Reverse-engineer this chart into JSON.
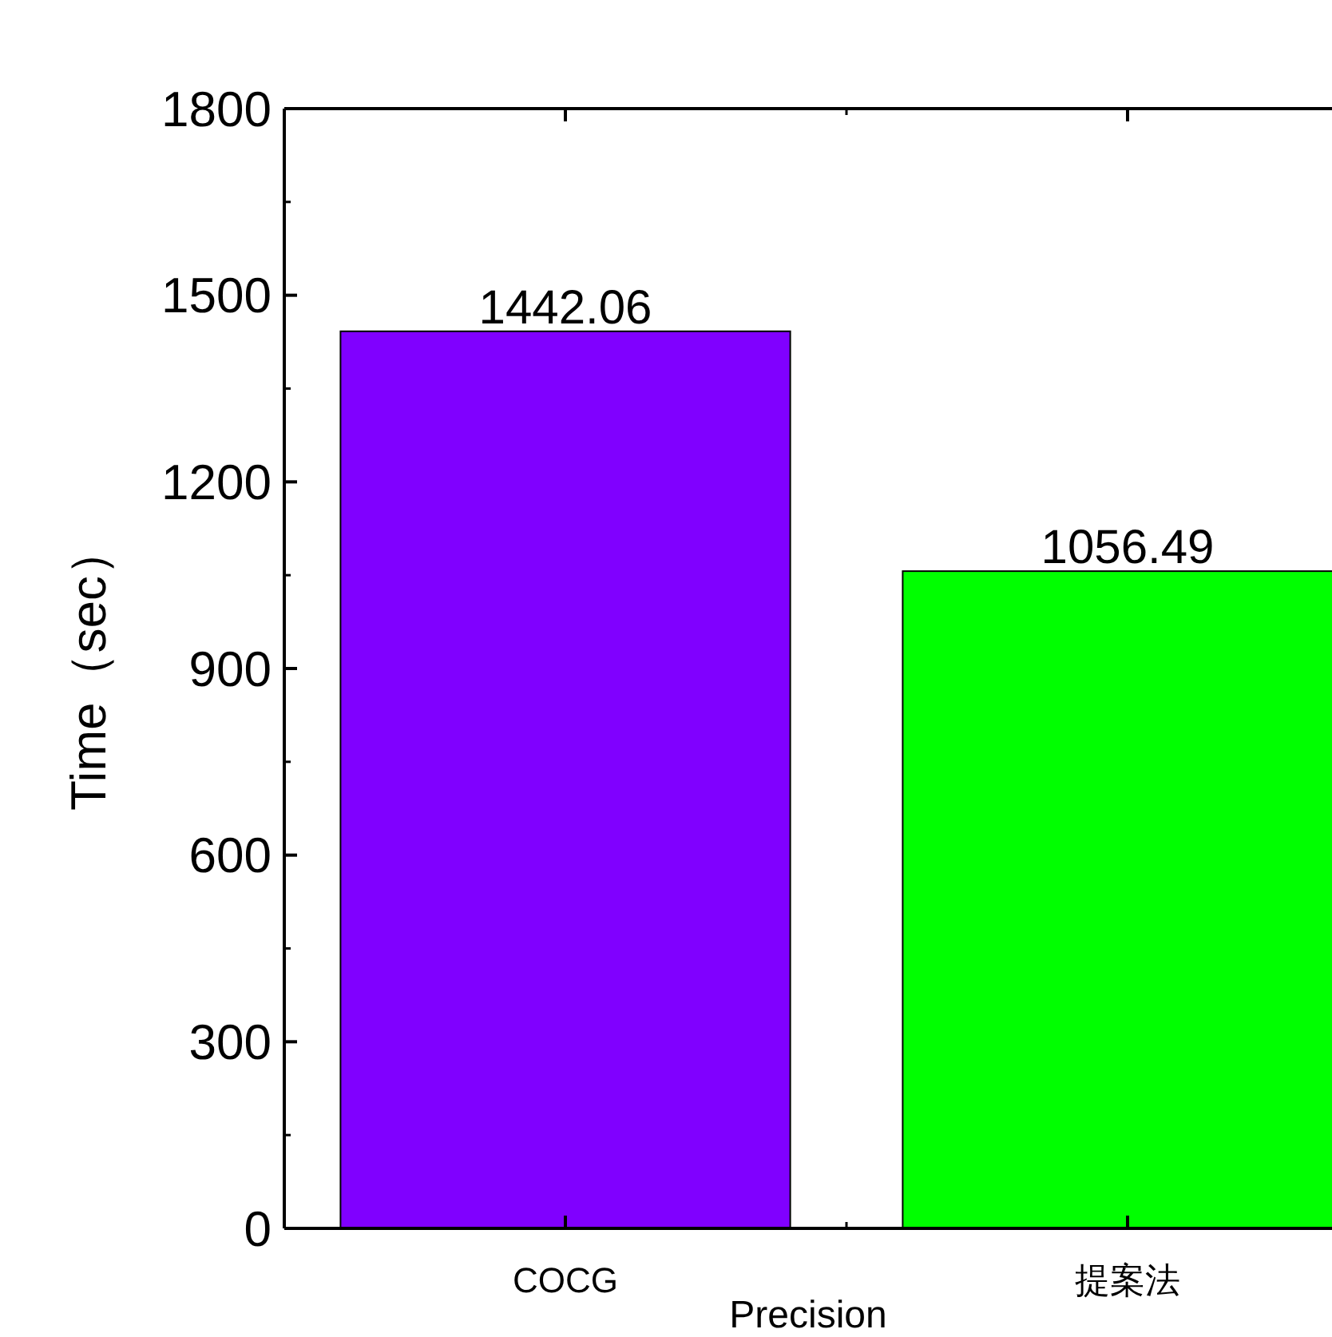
{
  "chart_data": {
    "type": "bar",
    "xlabel": "Precision",
    "ylabel": "Time（sec）",
    "categories": [
      "COCG",
      "提案法"
    ],
    "values": [
      1442.06,
      1056.49
    ],
    "colors": [
      "#8000ff",
      "#00ff00"
    ],
    "ylim": [
      0,
      1800
    ],
    "yticks": [
      0,
      300,
      600,
      900,
      1200,
      1500,
      1800
    ],
    "data_labels": true,
    "grid": false
  }
}
